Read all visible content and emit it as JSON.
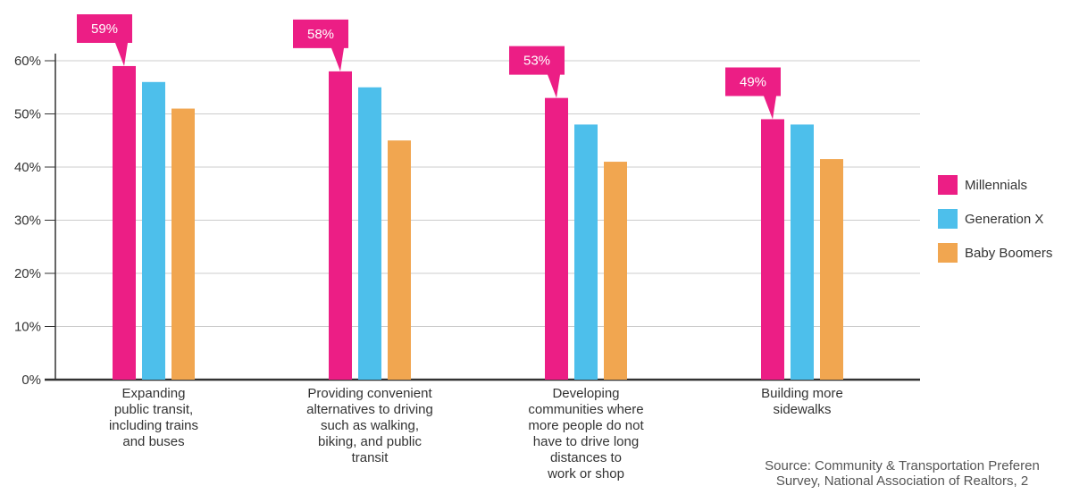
{
  "chart_data": {
    "type": "bar",
    "categories": [
      "Expanding\npublic transit,\nincluding trains\nand buses",
      "Providing convenient\nalternatives to driving\nsuch as walking,\nbiking, and public\ntransit",
      "Developing\ncommunities where\nmore people do not\nhave to drive long\ndistances to\nwork or shop",
      "Building more\nsidewalks"
    ],
    "series": [
      {
        "name": "Millennials",
        "values": [
          59,
          58,
          53,
          49
        ],
        "color": "#ec1e85"
      },
      {
        "name": "Generation X",
        "values": [
          56,
          55,
          48,
          48
        ],
        "color": "#4dbfeb"
      },
      {
        "name": "Baby Boomers",
        "values": [
          51,
          45,
          41,
          41.5
        ],
        "color": "#f1a650"
      }
    ],
    "callouts": [
      "59%",
      "58%",
      "53%",
      "49%"
    ],
    "callout_color": "#ec1e85",
    "yticks": [
      "0%",
      "10%",
      "20%",
      "30%",
      "40%",
      "50%",
      "60%"
    ],
    "ylim": [
      0,
      60
    ],
    "grid": true,
    "legend_position": "right"
  },
  "source": "Source: Community & Transportation Preferen\nSurvey, National Association of Realtors, 2"
}
